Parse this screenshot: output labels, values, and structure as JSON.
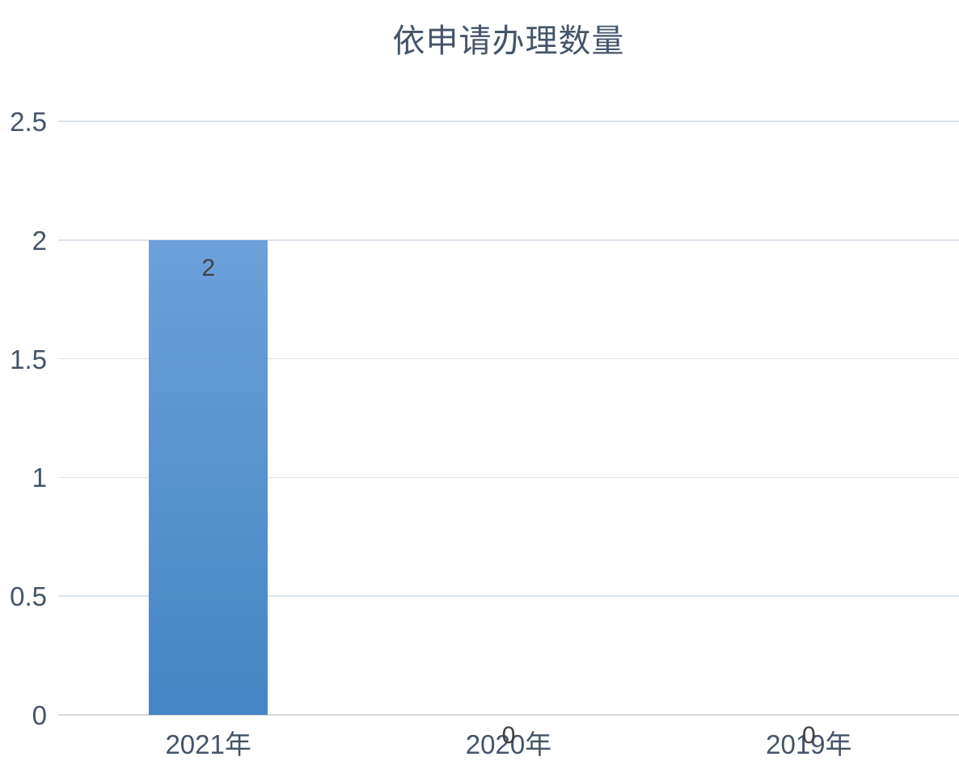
{
  "chart_data": {
    "type": "bar",
    "title": "依申请办理数量",
    "categories": [
      "2021年",
      "2020年",
      "2019年"
    ],
    "values": [
      2,
      0,
      0
    ],
    "data_labels": [
      "2",
      "0",
      "0"
    ],
    "xlabel": "",
    "ylabel": "",
    "ylim": [
      0,
      2.5
    ],
    "ytick_step": 0.5,
    "ytick_labels": [
      "0",
      "0.5",
      "1",
      "1.5",
      "2",
      "2.5"
    ],
    "grid": true,
    "legend": false,
    "data_label_position": "inside-end-for-nonzero, at-baseline-for-zero",
    "colors": {
      "bar_gradient_top": "#6CA0DA",
      "bar_gradient_bottom": "#4485C5",
      "gridline": "#DCE3ED",
      "baseline": "#D9D9D9",
      "axis_label": "#44546A",
      "title": "#44546A",
      "data_label": "#404040",
      "background": "#FFFFFF"
    }
  }
}
